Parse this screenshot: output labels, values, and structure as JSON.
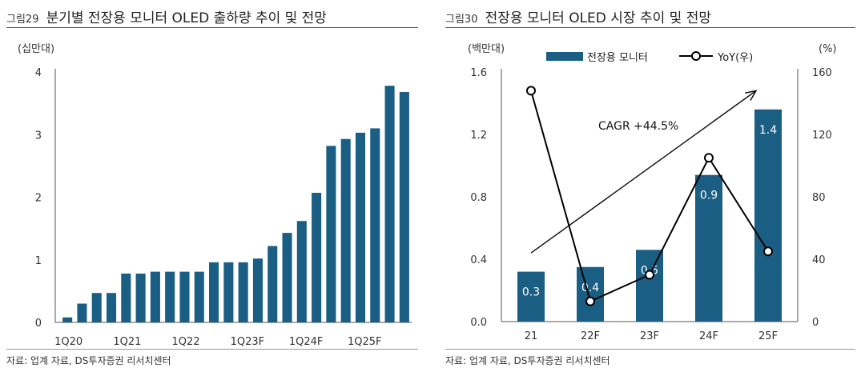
{
  "charts": [
    {
      "fig_label": "그림29",
      "title": "분기별 전장용 모니터 OLED 출하량 추이 및 전망",
      "source": "자료: 업계 자료, DS투자증권 리서치센터",
      "chart_data": {
        "type": "bar",
        "ylabel": "(십만대)",
        "ylim": [
          0,
          4
        ],
        "yticks": [
          "0",
          "1",
          "2",
          "3",
          "4"
        ],
        "categories": [
          "1Q20",
          "2Q20",
          "3Q20",
          "4Q20",
          "1Q21",
          "2Q21",
          "3Q21",
          "4Q21",
          "1Q22",
          "2Q22",
          "3Q22",
          "4Q22",
          "1Q23F",
          "2Q23F",
          "3Q23F",
          "4Q23F",
          "1Q24F",
          "2Q24F",
          "3Q24F",
          "4Q24F",
          "1Q25F",
          "2Q25F",
          "3Q25F",
          "4Q25F"
        ],
        "xtick_labels": [
          "1Q20",
          "1Q21",
          "1Q22",
          "1Q23F",
          "1Q24F",
          "1Q25F"
        ],
        "values": [
          0.08,
          0.3,
          0.47,
          0.47,
          0.78,
          0.78,
          0.81,
          0.81,
          0.81,
          0.81,
          0.96,
          0.96,
          0.96,
          1.02,
          1.22,
          1.43,
          1.62,
          2.07,
          2.82,
          2.93,
          3.03,
          3.1,
          3.78,
          3.68
        ],
        "color": "#1b5e84"
      }
    },
    {
      "fig_label": "그림30",
      "title": "전장용 모니터 OLED 시장 추이 및 전망",
      "source": "자료: 업계 자료, DS투자증권 리서치센터",
      "chart_data": {
        "type": "bar",
        "ylabel_left": "(백만대)",
        "ylabel_right": "(%)",
        "ylim_left": [
          0,
          1.6
        ],
        "ylim_right": [
          0,
          160
        ],
        "yticks_left": [
          "0.0",
          "0.4",
          "0.8",
          "1.2",
          "1.6"
        ],
        "yticks_right": [
          "0",
          "40",
          "80",
          "120",
          "160"
        ],
        "categories": [
          "21",
          "22F",
          "23F",
          "24F",
          "25F"
        ],
        "series": [
          {
            "name": "전장용 모니터",
            "type": "bar",
            "axis": "left",
            "values": [
              0.32,
              0.35,
              0.46,
              0.94,
              1.36
            ],
            "labels": [
              "0.3",
              "0.4",
              "0.5",
              "0.9",
              "1.4"
            ],
            "color": "#1b5e84"
          },
          {
            "name": "YoY(우)",
            "type": "line",
            "axis": "right",
            "values": [
              148,
              13,
              30,
              105,
              45
            ],
            "color": "#000000"
          }
        ],
        "annotation": "CAGR +44.5%"
      }
    }
  ]
}
